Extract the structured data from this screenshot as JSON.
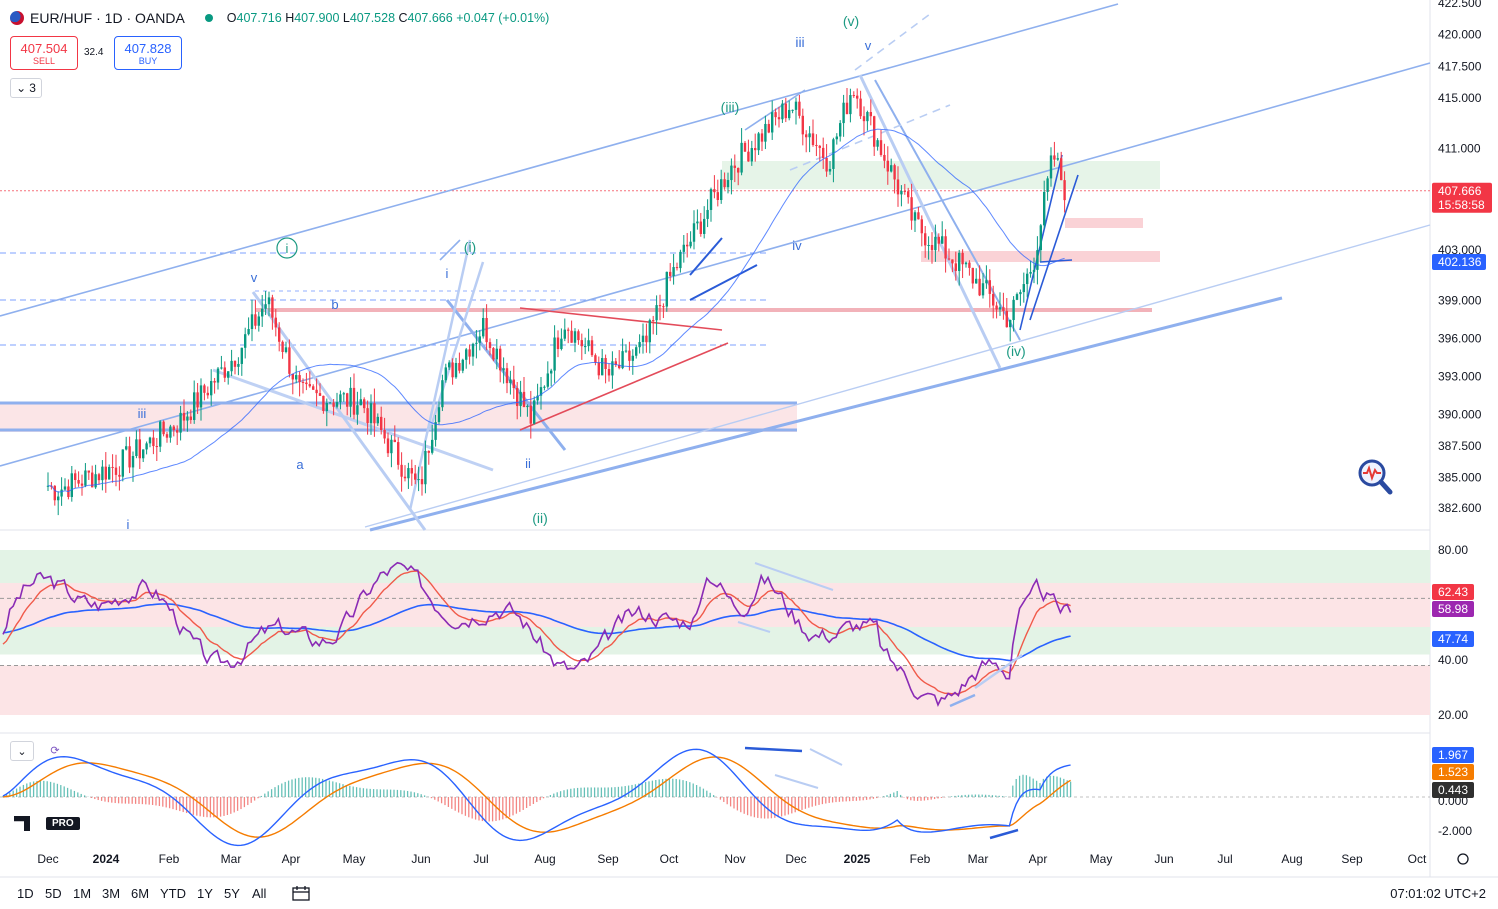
{
  "header": {
    "symbol": "EUR/HUF · 1D · OANDA",
    "ohlc": {
      "o": "407.716",
      "h": "407.900",
      "l": "407.528",
      "c": "407.666",
      "chg": "+0.047 (+0.01%)"
    },
    "sell_price": "407.504",
    "sell_label": "SELL",
    "buy_price": "407.828",
    "buy_label": "BUY",
    "spread": "32.4",
    "indicator_count": "3"
  },
  "chart_data": [
    {
      "type": "line",
      "description_series": "candlestick-approx",
      "x": [
        "2023-11-15",
        "2023-12-01",
        "2024-01-01",
        "2024-02-01",
        "2024-03-01",
        "2024-03-15",
        "2024-04-01",
        "2024-05-01",
        "2024-05-30",
        "2024-06-10",
        "2024-07-01",
        "2024-07-25",
        "2024-08-10",
        "2024-09-01",
        "2024-09-20",
        "2024-10-01",
        "2024-11-01",
        "2024-12-01",
        "2024-12-20",
        "2025-01-01",
        "2025-02-01",
        "2025-03-01",
        "2025-03-20",
        "2025-04-01",
        "2025-04-11",
        "2025-04-17"
      ],
      "series": [
        {
          "name": "",
          "values": [
            385.5,
            384.0,
            386.0,
            389.5,
            395.0,
            399.0,
            391.5,
            391.0,
            384.0,
            392.5,
            397.0,
            389.5,
            397.5,
            393.0,
            395.5,
            400.5,
            409.5,
            414.5,
            410.0,
            416.0,
            405.0,
            401.0,
            397.5,
            402.0,
            410.5,
            407.666
          ]
        }
      ],
      "y_ticks": [
        "422.500",
        "420.000",
        "417.500",
        "415.000",
        "411.000",
        "403.000",
        "399.000",
        "396.000",
        "393.000",
        "390.000",
        "387.500",
        "385.000",
        "382.600"
      ],
      "x_ticks": [
        "Dec",
        "2024",
        "Feb",
        "Mar",
        "Apr",
        "May",
        "Jun",
        "Jul",
        "Aug",
        "Sep",
        "Oct",
        "Nov",
        "Dec",
        "2025",
        "Feb",
        "Mar",
        "Apr",
        "May",
        "Jun",
        "Jul",
        "Aug",
        "Sep",
        "Oct"
      ],
      "price_label": "407.666",
      "countdown": "15:58:58",
      "ma_label": "402.136",
      "wave_labels": [
        "(v)",
        "iii",
        "v",
        "(iii)",
        "iv",
        "i",
        "(i)",
        "v",
        "b",
        "iii",
        "a",
        "ii",
        "(ii)",
        "(iv)",
        "i"
      ]
    },
    {
      "type": "line",
      "name": "RSI",
      "y_ticks": [
        "80.00",
        "40.00",
        "20.00"
      ],
      "labels": [
        "62.43",
        "58.98",
        "47.74"
      ]
    },
    {
      "type": "line",
      "name": "MACD",
      "y_ticks": [
        "0.000",
        "-2.000"
      ],
      "labels": [
        "1.967",
        "1.523",
        "0.443"
      ]
    }
  ],
  "colors": {
    "up": "#089981",
    "down": "#f23645",
    "line": "#8fb0ee",
    "ma": "#2962ff"
  },
  "bottom": {
    "ranges": [
      "1D",
      "5D",
      "1M",
      "3M",
      "6M",
      "YTD",
      "1Y",
      "5Y",
      "All"
    ],
    "clock": "07:01:02 UTC+2"
  }
}
